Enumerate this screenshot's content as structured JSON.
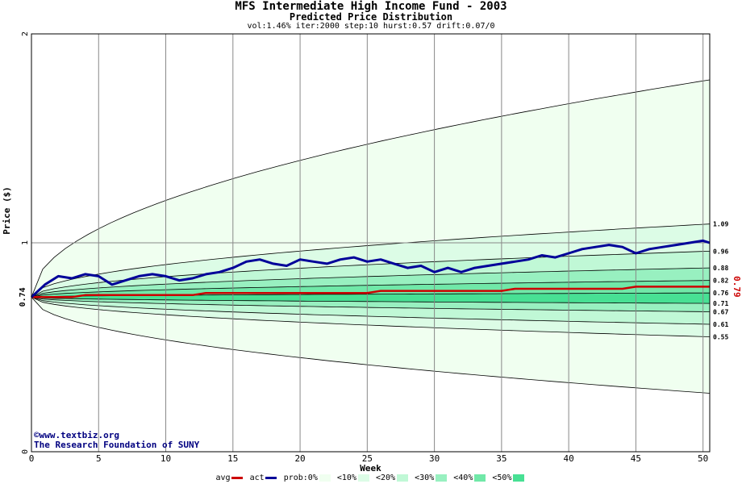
{
  "chart_data": {
    "type": "area",
    "title": "MFS Intermediate High Income Fund - 2003",
    "subtitle": "Predicted Price Distribution",
    "params": "vol:1.46% iter:2000 step:10 hurst:0.57 drift:0.07/0",
    "xlabel": "Week",
    "ylabel": "Price ($)",
    "xlim": [
      0,
      50.5
    ],
    "ylim": [
      0,
      2
    ],
    "x_ticks": [
      "0",
      "5",
      "10",
      "15",
      "20",
      "25",
      "30",
      "35",
      "40",
      "45",
      "50"
    ],
    "y_ticks": [
      "0",
      "1",
      "2"
    ],
    "start_price_label": "0.74",
    "end_price_label": "0.79",
    "band_end_labels": [
      "1.09",
      "0.96",
      "0.88",
      "0.82",
      "0.76",
      "0.71",
      "0.67",
      "0.61",
      "0.55"
    ],
    "bands": [
      {
        "name": "prob:0%",
        "lower_end": 0.28,
        "upper_end": 1.78,
        "color": "#f0fff0"
      },
      {
        "name": "<10%",
        "lower_end": 0.55,
        "upper_end": 1.09,
        "color": "#dcfce6"
      },
      {
        "name": "<20%",
        "lower_end": 0.61,
        "upper_end": 0.96,
        "color": "#c0f8d6"
      },
      {
        "name": "<30%",
        "lower_end": 0.67,
        "upper_end": 0.88,
        "color": "#98f0c0"
      },
      {
        "name": "<40%",
        "lower_end": 0.71,
        "upper_end": 0.82,
        "color": "#70e8a8"
      },
      {
        "name": "<50%",
        "lower_end": 0.71,
        "upper_end": 0.76,
        "color": "#48e094"
      }
    ],
    "series": [
      {
        "name": "avg",
        "color": "#cc0000",
        "x": [
          0,
          3,
          4,
          12,
          13,
          25,
          26,
          35,
          36,
          44,
          45,
          50.5
        ],
        "values": [
          0.74,
          0.74,
          0.75,
          0.75,
          0.76,
          0.76,
          0.77,
          0.77,
          0.78,
          0.78,
          0.79,
          0.79
        ]
      },
      {
        "name": "act",
        "color": "#000099",
        "x": [
          0,
          1,
          2,
          3,
          4,
          5,
          6,
          7,
          8,
          9,
          10,
          11,
          12,
          13,
          14,
          15,
          16,
          17,
          18,
          19,
          20,
          21,
          22,
          23,
          24,
          25,
          26,
          27,
          28,
          29,
          30,
          31,
          32,
          33,
          34,
          35,
          36,
          37,
          38,
          39,
          40,
          41,
          42,
          43,
          44,
          45,
          46,
          47,
          48,
          49,
          50,
          50.5
        ],
        "values": [
          0.74,
          0.8,
          0.84,
          0.83,
          0.85,
          0.84,
          0.8,
          0.82,
          0.84,
          0.85,
          0.84,
          0.82,
          0.83,
          0.85,
          0.86,
          0.88,
          0.91,
          0.92,
          0.9,
          0.89,
          0.92,
          0.91,
          0.9,
          0.92,
          0.93,
          0.91,
          0.92,
          0.9,
          0.88,
          0.89,
          0.86,
          0.88,
          0.86,
          0.88,
          0.89,
          0.9,
          0.91,
          0.92,
          0.94,
          0.93,
          0.95,
          0.97,
          0.98,
          0.99,
          0.98,
          0.95,
          0.97,
          0.98,
          0.99,
          1.0,
          1.01,
          1.0
        ]
      }
    ],
    "legend": {
      "placement": "bottom",
      "items": [
        "avg",
        "act",
        "prob:0%",
        "<10%",
        "<20%",
        "<30%",
        "<40%",
        "<50%"
      ]
    },
    "grid": true
  },
  "credits": {
    "copyright_url": "www.textbiz.org",
    "organization": "The Research Foundation of SUNY"
  }
}
